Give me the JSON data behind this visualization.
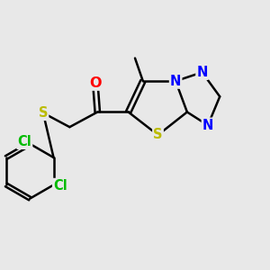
{
  "bg_color": "#e8e8e8",
  "bond_color": "#000000",
  "bond_width": 1.8,
  "atom_colors": {
    "O": "#ff0000",
    "N": "#0000ff",
    "S": "#bbbb00",
    "Cl": "#00bb00",
    "C": "#000000"
  },
  "font_size": 10.5,
  "title": ""
}
